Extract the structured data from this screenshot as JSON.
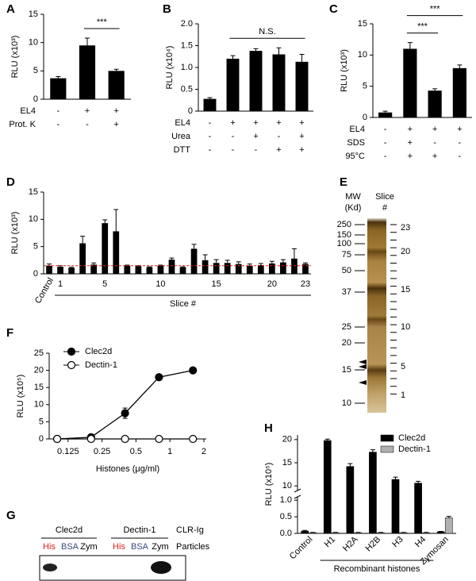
{
  "chart_data": [
    {
      "panel": "A",
      "type": "bar",
      "ylabel": "RLU (x10³)",
      "values": [
        3.7,
        9.5,
        5.0
      ],
      "errors": [
        0.3,
        1.3,
        0.3
      ],
      "color": "#000000",
      "ylim": [
        0,
        15
      ],
      "yticks": [
        0,
        5,
        10,
        15
      ],
      "conditions": [
        {
          "label": "EL4",
          "values": [
            "-",
            "+",
            "+"
          ]
        },
        {
          "label": "Prot. K",
          "values": [
            "-",
            "-",
            "+"
          ]
        }
      ],
      "brackets": [
        {
          "text": "***",
          "between": [
            1,
            2
          ]
        }
      ]
    },
    {
      "panel": "B",
      "type": "bar",
      "ylabel": "RLU (x10⁴)",
      "values": [
        0.28,
        1.2,
        1.38,
        1.3,
        1.13
      ],
      "errors": [
        0.03,
        0.07,
        0.05,
        0.15,
        0.17
      ],
      "color": "#000000",
      "ylim": [
        0,
        2
      ],
      "yticks": [
        0,
        0.5,
        {
          "value": 1,
          "label": "1.0"
        },
        1.5,
        {
          "value": 2,
          "label": "2.0"
        }
      ],
      "conditions": [
        {
          "label": "EL4",
          "values": [
            "-",
            "+",
            "+",
            "+",
            "+"
          ]
        },
        {
          "label": "Urea",
          "values": [
            "-",
            "-",
            "+",
            "-",
            "+"
          ]
        },
        {
          "label": "DTT",
          "values": [
            "-",
            "-",
            "-",
            "+",
            "+"
          ]
        }
      ],
      "brackets": [
        {
          "text": "N.S.",
          "between": [
            1,
            4
          ]
        }
      ]
    },
    {
      "panel": "C",
      "type": "bar",
      "ylabel": "RLU (x10³)",
      "values": [
        0.8,
        11.0,
        4.3,
        7.9
      ],
      "errors": [
        0.2,
        1.0,
        0.3,
        0.5
      ],
      "color": "#000000",
      "ylim": [
        0,
        15
      ],
      "yticks": [
        0,
        5,
        10,
        15
      ],
      "conditions": [
        {
          "label": "EL4",
          "values": [
            "-",
            "+",
            "+",
            "+"
          ]
        },
        {
          "label": "SDS",
          "values": [
            "-",
            "+",
            "-",
            "-"
          ]
        },
        {
          "label": "95°C",
          "values": [
            "-",
            "+",
            "+",
            "-"
          ]
        }
      ],
      "brackets": [
        {
          "text": "***",
          "between": [
            1,
            2
          ]
        },
        {
          "text": "***",
          "between": [
            1,
            3
          ]
        }
      ]
    },
    {
      "panel": "D",
      "type": "bar",
      "ylabel": "RLU (x10³)",
      "categories": [
        "Control",
        "1",
        null,
        null,
        null,
        "5",
        null,
        null,
        null,
        null,
        "10",
        null,
        null,
        null,
        null,
        "15",
        null,
        null,
        null,
        null,
        "20",
        null,
        null,
        "23"
      ],
      "values": [
        1.5,
        1.3,
        1.1,
        5.6,
        1.7,
        9.3,
        7.8,
        1.5,
        1.4,
        1.2,
        1.5,
        2.6,
        1.2,
        4.6,
        2.5,
        2.0,
        2.0,
        1.8,
        1.5,
        1.6,
        1.9,
        2.1,
        2.8,
        1.8
      ],
      "errors": [
        0.3,
        0.2,
        0.1,
        1.3,
        0.3,
        0.6,
        4.0,
        0.1,
        0.1,
        0.1,
        0.1,
        0.3,
        0.1,
        0.8,
        1.0,
        0.6,
        0.5,
        0.4,
        0.3,
        0.3,
        0.4,
        0.5,
        1.8,
        0.2
      ],
      "color": "#000000",
      "ylim": [
        0,
        15
      ],
      "yticks": [
        0,
        5,
        10,
        15
      ],
      "reference_line": {
        "value": 1.5,
        "color": "#e02020"
      },
      "xgroup": {
        "label": "Slice #",
        "between": [
          1,
          23
        ]
      }
    },
    {
      "panel": "F",
      "type": "line",
      "ylabel": "RLU (x10⁵)",
      "xlabel": "Histones (μg/ml)",
      "xscale": "log",
      "x": [
        0.1,
        0.2,
        0.4,
        0.8,
        1.6
      ],
      "series": [
        {
          "name": "Clec2d",
          "color": "#000000",
          "marker": "filled",
          "values": [
            0,
            0.5,
            7.5,
            18,
            20
          ],
          "errors": [
            0,
            0.3,
            1.5,
            0.5,
            0.3
          ]
        },
        {
          "name": "Dectin-1",
          "color": "#000000",
          "marker": "open",
          "values": [
            0,
            0,
            0,
            0,
            0
          ]
        }
      ],
      "xlim": [
        0.085,
        2.1
      ],
      "xticks": [
        0.125,
        0.25,
        0.5,
        1,
        2
      ],
      "ylim": [
        0,
        25
      ],
      "yticks": [
        0,
        5,
        10,
        15,
        20,
        25
      ],
      "legend": "upper left"
    },
    {
      "panel": "H",
      "type": "bar",
      "ylabel": "RLU (x10⁵)",
      "categories": [
        "Control",
        "H1",
        "H2A",
        "H2B",
        "H3",
        "H4",
        "Zymosan"
      ],
      "series": [
        {
          "name": "Clec2d",
          "color": "#000000",
          "values": [
            0.07,
            19.8,
            14.2,
            17.3,
            11.4,
            10.6,
            0.05
          ],
          "errors": [
            0.02,
            0.3,
            0.6,
            0.5,
            0.5,
            0.4,
            0.01
          ]
        },
        {
          "name": "Dectin-1",
          "color": "#b0b0b0",
          "values": [
            0.02,
            0.02,
            0.02,
            0.02,
            0.02,
            0.02,
            0.47
          ],
          "errors": [
            0.01,
            0.01,
            0.01,
            0.01,
            0.01,
            0.01,
            0.04
          ]
        }
      ],
      "ylim": [
        0,
        21
      ],
      "ybreak": [
        1.1,
        9
      ],
      "yticks": [
        {
          "value": 0,
          "label": "0.0"
        },
        0.5,
        {
          "value": 1,
          "label": "1.0"
        },
        10,
        15,
        20
      ],
      "legend": "upper right",
      "xgroup": {
        "label": "Recombinant histones",
        "between": [
          1,
          5
        ]
      }
    }
  ],
  "gel": {
    "panel": "E",
    "mw_header": [
      "MW",
      "(Kd)"
    ],
    "slice_header": [
      "Slice",
      "#"
    ],
    "mw": [
      250,
      150,
      100,
      75,
      50,
      37,
      25,
      20,
      15,
      10
    ],
    "slices": [
      23,
      20,
      15,
      10,
      5,
      1
    ]
  },
  "blot": {
    "panel": "G",
    "groups": [
      {
        "name": "Clec2d",
        "lanes": [
          {
            "text": "His",
            "color": "#e02020"
          },
          {
            "text": "BSA",
            "color": "#3a4a7a"
          },
          {
            "text": "Zym",
            "color": "#000000"
          }
        ]
      },
      {
        "name": "Dectin-1",
        "lanes": [
          {
            "text": "His",
            "color": "#e02020"
          },
          {
            "text": "BSA",
            "color": "#3a4a7a"
          },
          {
            "text": "Zym",
            "color": "#000000"
          }
        ]
      }
    ],
    "row_labels": [
      "CLR-Ig",
      "Particles"
    ]
  }
}
